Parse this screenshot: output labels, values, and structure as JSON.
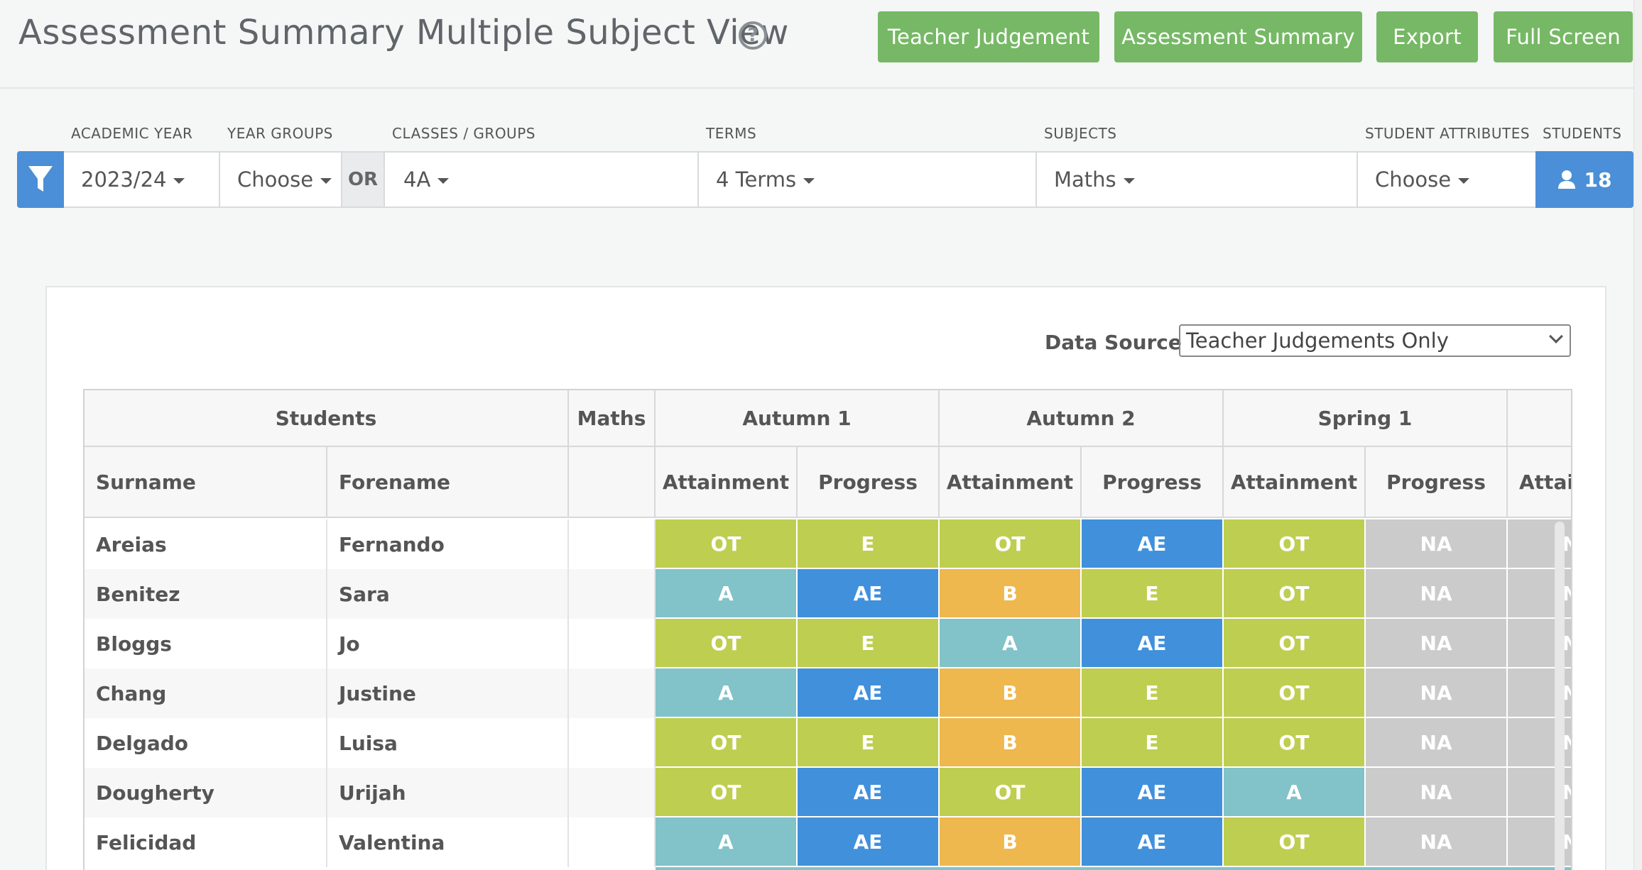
{
  "header": {
    "title": "Assessment Summary Multiple Subject View",
    "help_icon": "question-circle-icon",
    "buttons": {
      "teacher_judgement": "Teacher Judgement",
      "assessment_summary": "Assessment Summary",
      "export": "Export",
      "full_screen": "Full Screen"
    },
    "button_color": "#76b865"
  },
  "filters": {
    "labels": {
      "academic_year": "ACADEMIC YEAR",
      "year_groups": "YEAR GROUPS",
      "classes_groups": "CLASSES / GROUPS",
      "terms": "TERMS",
      "subjects": "SUBJECTS",
      "student_attributes": "STUDENT ATTRIBUTES",
      "students": "STUDENTS"
    },
    "values": {
      "academic_year": "2023/24",
      "year_groups": "Choose",
      "or": "OR",
      "classes_groups": "4A",
      "terms": "4 Terms",
      "subjects": "Maths",
      "student_attributes": "Choose",
      "students_count": "18"
    },
    "accent_color": "#4a8fd8"
  },
  "data_source": {
    "label": "Data Source",
    "selected": "Teacher Judgements Only"
  },
  "table": {
    "group_headers": {
      "students": "Students",
      "maths": "Maths",
      "autumn1": "Autumn 1",
      "autumn2": "Autumn 2",
      "spring1": "Spring 1"
    },
    "column_headers": {
      "surname": "Surname",
      "forename": "Forename",
      "attainment": "Attainment",
      "progress": "Progress",
      "attainment_cut": "Attai"
    },
    "grade_colors": {
      "OT": "#bece50",
      "E": "#bece50",
      "A": "#82c2c9",
      "AE": "#4090dc",
      "B": "#eeb84e",
      "NA": "#cbcbcb"
    },
    "rows": [
      {
        "surname": "Areias",
        "forename": "Fernando",
        "grades": [
          "OT",
          "E",
          "OT",
          "AE",
          "OT",
          "NA",
          "NA"
        ]
      },
      {
        "surname": "Benitez",
        "forename": "Sara",
        "grades": [
          "A",
          "AE",
          "B",
          "E",
          "OT",
          "NA",
          "NA"
        ]
      },
      {
        "surname": "Bloggs",
        "forename": "Jo",
        "grades": [
          "OT",
          "E",
          "A",
          "AE",
          "OT",
          "NA",
          "NA"
        ]
      },
      {
        "surname": "Chang",
        "forename": "Justine",
        "grades": [
          "A",
          "AE",
          "B",
          "E",
          "OT",
          "NA",
          "NA"
        ]
      },
      {
        "surname": "Delgado",
        "forename": "Luisa",
        "grades": [
          "OT",
          "E",
          "B",
          "E",
          "OT",
          "NA",
          "NA"
        ]
      },
      {
        "surname": "Dougherty",
        "forename": "Urijah",
        "grades": [
          "OT",
          "AE",
          "OT",
          "AE",
          "A",
          "NA",
          "NA"
        ]
      },
      {
        "surname": "Felicidad",
        "forename": "Valentina",
        "grades": [
          "A",
          "AE",
          "B",
          "AE",
          "OT",
          "NA",
          "NA"
        ]
      }
    ]
  }
}
